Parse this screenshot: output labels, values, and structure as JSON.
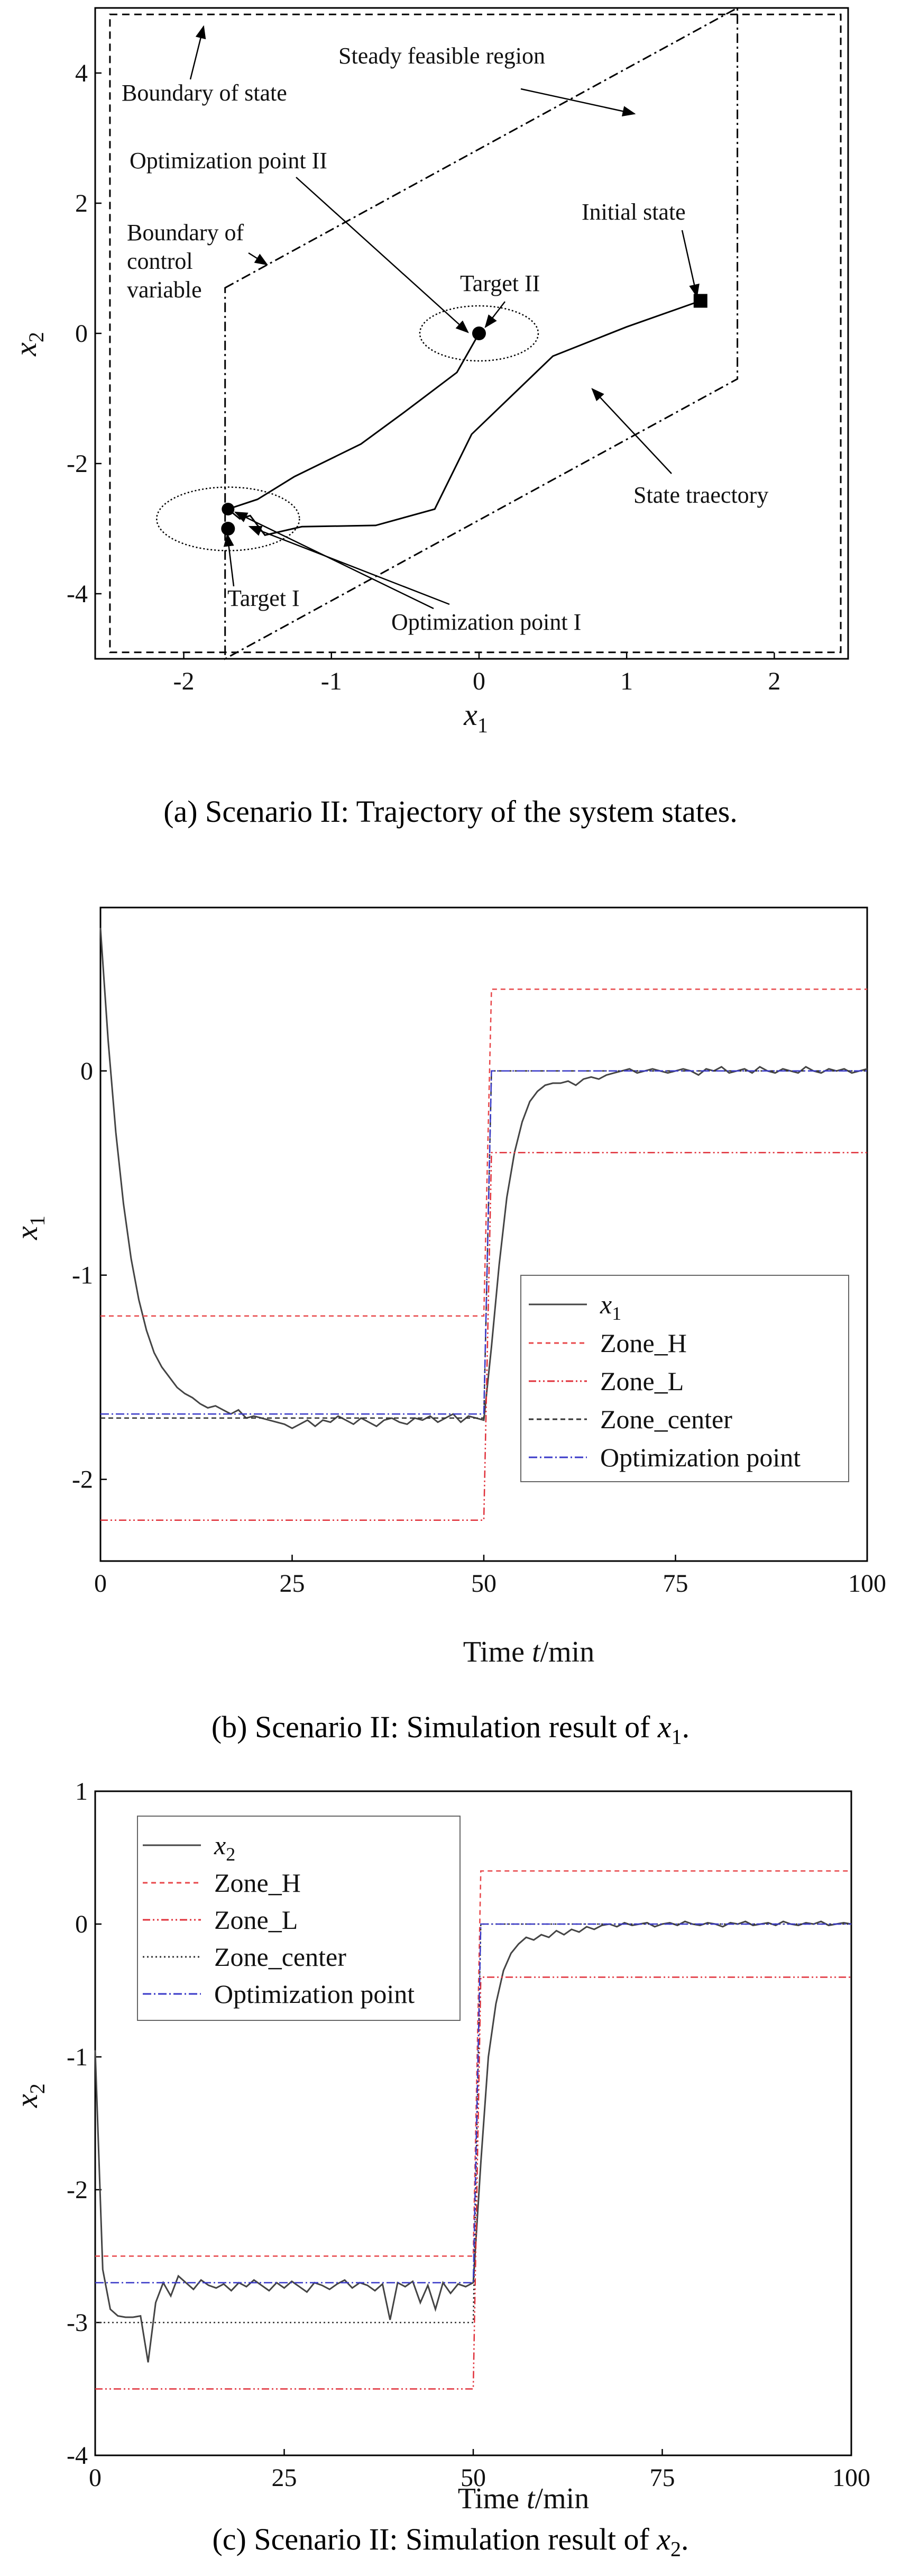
{
  "panel_a": {
    "caption": "(a) Scenario II: Trajectory of the system states.",
    "x_label_var": "x",
    "x_label_sub": "1",
    "y_label_var": "x",
    "y_label_sub": "2",
    "annotations": {
      "boundary_state": "Boundary of state",
      "steady_region": "Steady feasible region",
      "opt_point_2": "Optimization point II",
      "initial_state": "Initial state",
      "boundary_control_1": "Boundary of",
      "boundary_control_2": "control",
      "boundary_control_3": "variable",
      "target_2": "Target II",
      "state_trajectory": "State traectory",
      "target_1": "Target I",
      "opt_point_1": "Optimization point I"
    }
  },
  "panel_b": {
    "caption_prefix": "(b) Scenario II: Simulation result of ",
    "caption_var": "x",
    "caption_sub": "1",
    "caption_suffix": ".",
    "x_label_prefix": "Time ",
    "x_label_var": "t",
    "x_label_suffix": "/min",
    "y_label_var": "x",
    "y_label_sub": "1",
    "legend": {
      "x_var": "x",
      "x_sub": "1",
      "zone_h": "Zone_H",
      "zone_l": "Zone_L",
      "zone_center": "Zone_center",
      "optimization_point": "Optimization point"
    }
  },
  "panel_c": {
    "caption_prefix": "(c) Scenario II: Simulation result of ",
    "caption_var": "x",
    "caption_sub": "2",
    "caption_suffix": ".",
    "x_label_prefix": "Time ",
    "x_label_var": "t",
    "x_label_suffix": "/min",
    "y_label_var": "x",
    "y_label_sub": "2",
    "legend": {
      "x_var": "x",
      "x_sub": "2",
      "zone_h": "Zone_H",
      "zone_l": "Zone_L",
      "zone_center": "Zone_center",
      "optimization_point": "Optimization point"
    }
  },
  "colors": {
    "series": "#444444",
    "zone_h": "#e8474a",
    "zone_l": "#e0303a",
    "zone_center": "#333333",
    "optimization_point": "#3a3ac8"
  },
  "chart_data": [
    {
      "type": "scatter",
      "title": "Scenario II: Trajectory of the system states",
      "xlabel": "x1",
      "ylabel": "x2",
      "xlim": [
        -2.6,
        2.5
      ],
      "ylim": [
        -5,
        5
      ],
      "xticks": [
        -2,
        -1,
        0,
        1,
        2
      ],
      "yticks": [
        -4,
        -2,
        0,
        2,
        4
      ],
      "state_boundary": {
        "x": [
          -2.5,
          2.45
        ],
        "y": [
          -4.9,
          4.9
        ]
      },
      "steady_feasible_region": [
        [
          -1.72,
          0.7
        ],
        [
          1.75,
          5.0
        ],
        [
          1.75,
          -0.7
        ],
        [
          -1.72,
          -5.0
        ]
      ],
      "trajectory": [
        [
          1.5,
          0.5
        ],
        [
          1.0,
          0.1
        ],
        [
          0.5,
          -0.35
        ],
        [
          -0.05,
          -1.55
        ],
        [
          -0.3,
          -2.7
        ],
        [
          -0.7,
          -2.95
        ],
        [
          -1.2,
          -2.97
        ],
        [
          -1.45,
          -3.1
        ],
        [
          -1.55,
          -2.8
        ],
        [
          -1.62,
          -2.85
        ],
        [
          -1.7,
          -2.7
        ],
        [
          -1.5,
          -2.55
        ],
        [
          -1.25,
          -2.2
        ],
        [
          -0.8,
          -1.7
        ],
        [
          -0.5,
          -1.2
        ],
        [
          -0.15,
          -0.6
        ],
        [
          0.0,
          0.0
        ]
      ],
      "initial_state": [
        1.5,
        0.5
      ],
      "target_1": [
        -1.7,
        -3.0
      ],
      "optimization_point_1": [
        -1.7,
        -2.7
      ],
      "target_2": [
        0.0,
        0.0
      ],
      "optimization_point_2": [
        0.0,
        0.0
      ]
    },
    {
      "type": "line",
      "title": "Scenario II: Simulation result of x1",
      "xlabel": "Time t/min",
      "ylabel": "x1",
      "xlim": [
        0,
        100
      ],
      "ylim": [
        -2.4,
        0.8
      ],
      "xticks": [
        0,
        25,
        50,
        75,
        100
      ],
      "yticks": [
        -2,
        -1,
        0
      ],
      "series": [
        {
          "name": "x1",
          "x": [
            0,
            1,
            2,
            3,
            4,
            5,
            6,
            7,
            8,
            9,
            10,
            11,
            12,
            13,
            14,
            15,
            16,
            17,
            18,
            19,
            20,
            21,
            22,
            23,
            24,
            25,
            26,
            27,
            28,
            29,
            30,
            31,
            32,
            33,
            34,
            35,
            36,
            37,
            38,
            39,
            40,
            41,
            42,
            43,
            44,
            45,
            46,
            47,
            48,
            49,
            50,
            51,
            52,
            53,
            54,
            55,
            56,
            57,
            58,
            59,
            60,
            61,
            62,
            63,
            64,
            65,
            66,
            67,
            68,
            69,
            70,
            71,
            72,
            73,
            74,
            75,
            76,
            77,
            78,
            79,
            80,
            81,
            82,
            83,
            84,
            85,
            86,
            87,
            88,
            89,
            90,
            91,
            92,
            93,
            94,
            95,
            96,
            97,
            98,
            99,
            100
          ],
          "values": [
            0.7,
            0.15,
            -0.3,
            -0.65,
            -0.92,
            -1.12,
            -1.27,
            -1.38,
            -1.45,
            -1.5,
            -1.55,
            -1.58,
            -1.6,
            -1.63,
            -1.65,
            -1.64,
            -1.66,
            -1.68,
            -1.66,
            -1.7,
            -1.69,
            -1.7,
            -1.71,
            -1.72,
            -1.73,
            -1.75,
            -1.73,
            -1.71,
            -1.74,
            -1.71,
            -1.72,
            -1.69,
            -1.71,
            -1.73,
            -1.7,
            -1.72,
            -1.74,
            -1.71,
            -1.7,
            -1.72,
            -1.73,
            -1.7,
            -1.71,
            -1.69,
            -1.72,
            -1.7,
            -1.68,
            -1.72,
            -1.69,
            -1.7,
            -1.71,
            -1.35,
            -0.95,
            -0.62,
            -0.4,
            -0.25,
            -0.15,
            -0.1,
            -0.07,
            -0.06,
            -0.06,
            -0.05,
            -0.07,
            -0.04,
            -0.03,
            -0.04,
            -0.02,
            -0.01,
            0.0,
            0.01,
            -0.01,
            0.0,
            0.01,
            0.0,
            -0.01,
            0.0,
            0.01,
            0.0,
            -0.02,
            0.01,
            0.0,
            0.02,
            -0.01,
            0.0,
            0.01,
            -0.01,
            0.02,
            0.0,
            -0.01,
            0.01,
            0.0,
            -0.01,
            0.02,
            0.0,
            -0.01,
            0.01,
            0.0,
            0.01,
            -0.01,
            0.0,
            0.01
          ]
        },
        {
          "name": "Zone_H",
          "x": [
            0,
            50,
            51,
            100
          ],
          "values": [
            -1.2,
            -1.2,
            0.4,
            0.4
          ]
        },
        {
          "name": "Zone_L",
          "x": [
            0,
            50,
            51,
            100
          ],
          "values": [
            -2.2,
            -2.2,
            -0.4,
            -0.4
          ]
        },
        {
          "name": "Zone_center",
          "x": [
            0,
            50,
            51,
            100
          ],
          "values": [
            -1.7,
            -1.7,
            0.0,
            0.0
          ]
        },
        {
          "name": "Optimization point",
          "x": [
            0,
            50,
            51,
            100
          ],
          "values": [
            -1.68,
            -1.68,
            0.0,
            0.0
          ]
        }
      ]
    },
    {
      "type": "line",
      "title": "Scenario II: Simulation result of x2",
      "xlabel": "Time t/min",
      "ylabel": "x2",
      "xlim": [
        0,
        100
      ],
      "ylim": [
        -4,
        1
      ],
      "xticks": [
        0,
        25,
        50,
        75,
        100
      ],
      "yticks": [
        -4,
        -3,
        -2,
        -1,
        0,
        1
      ],
      "series": [
        {
          "name": "x2",
          "x": [
            0,
            1,
            2,
            3,
            4,
            5,
            6,
            7,
            8,
            9,
            10,
            11,
            12,
            13,
            14,
            15,
            16,
            17,
            18,
            19,
            20,
            21,
            22,
            23,
            24,
            25,
            26,
            27,
            28,
            29,
            30,
            31,
            32,
            33,
            34,
            35,
            36,
            37,
            38,
            39,
            40,
            41,
            42,
            43,
            44,
            45,
            46,
            47,
            48,
            49,
            50,
            51,
            52,
            53,
            54,
            55,
            56,
            57,
            58,
            59,
            60,
            61,
            62,
            63,
            64,
            65,
            66,
            67,
            68,
            69,
            70,
            71,
            72,
            73,
            74,
            75,
            76,
            77,
            78,
            79,
            80,
            81,
            82,
            83,
            84,
            85,
            86,
            87,
            88,
            89,
            90,
            91,
            92,
            93,
            94,
            95,
            96,
            97,
            98,
            99,
            100
          ],
          "values": [
            -0.95,
            -2.6,
            -2.9,
            -2.95,
            -2.96,
            -2.96,
            -2.95,
            -3.3,
            -2.85,
            -2.7,
            -2.8,
            -2.65,
            -2.7,
            -2.75,
            -2.68,
            -2.72,
            -2.74,
            -2.71,
            -2.76,
            -2.7,
            -2.73,
            -2.68,
            -2.72,
            -2.76,
            -2.7,
            -2.74,
            -2.69,
            -2.73,
            -2.77,
            -2.7,
            -2.72,
            -2.75,
            -2.71,
            -2.68,
            -2.74,
            -2.7,
            -2.72,
            -2.76,
            -2.71,
            -2.98,
            -2.7,
            -2.73,
            -2.69,
            -2.85,
            -2.72,
            -2.9,
            -2.7,
            -2.78,
            -2.71,
            -2.73,
            -2.7,
            -1.8,
            -1.0,
            -0.6,
            -0.35,
            -0.22,
            -0.15,
            -0.1,
            -0.12,
            -0.08,
            -0.1,
            -0.05,
            -0.08,
            -0.04,
            -0.06,
            -0.02,
            -0.04,
            -0.01,
            0.0,
            -0.02,
            0.01,
            -0.01,
            0.0,
            0.01,
            -0.02,
            0.0,
            0.01,
            -0.01,
            0.02,
            0.0,
            -0.01,
            0.01,
            0.0,
            -0.02,
            0.01,
            0.0,
            0.02,
            -0.01,
            0.0,
            0.01,
            -0.01,
            0.02,
            0.0,
            -0.01,
            0.01,
            0.0,
            0.02,
            -0.01,
            0.0,
            0.01,
            0.0
          ]
        },
        {
          "name": "Zone_H",
          "x": [
            0,
            50,
            51,
            100
          ],
          "values": [
            -2.5,
            -2.5,
            0.4,
            0.4
          ]
        },
        {
          "name": "Zone_L",
          "x": [
            0,
            50,
            51,
            100
          ],
          "values": [
            -3.5,
            -3.5,
            -0.4,
            -0.4
          ]
        },
        {
          "name": "Zone_center",
          "x": [
            0,
            50,
            51,
            100
          ],
          "values": [
            -3.0,
            -3.0,
            0.0,
            0.0
          ]
        },
        {
          "name": "Optimization point",
          "x": [
            0,
            50,
            51,
            100
          ],
          "values": [
            -2.7,
            -2.7,
            0.0,
            0.0
          ]
        }
      ]
    }
  ]
}
